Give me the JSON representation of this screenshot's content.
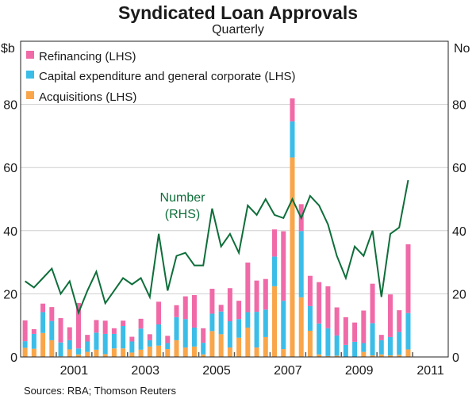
{
  "chart_data": {
    "type": "bar",
    "title": "Syndicated Loan Approvals",
    "subtitle": "Quarterly",
    "ylabel_left": "$b",
    "ylabel_right": "No",
    "ylim_left": [
      0,
      100
    ],
    "ylim_right": [
      0,
      100
    ],
    "yticks": [
      "0",
      "20",
      "40",
      "60",
      "80"
    ],
    "xlim": [
      2000,
      2012
    ],
    "xticks": [
      "2001",
      "2003",
      "2005",
      "2007",
      "2009",
      "2011"
    ],
    "grid": true,
    "legend_placement": "top-left",
    "x_start": "2000 Q1",
    "x_end": "2010 Q4",
    "series": [
      {
        "name": "Refinancing (LHS)",
        "kind": "stacked-bar",
        "color": "#f06aa8",
        "values": [
          6.6,
          1.5,
          2.7,
          4.4,
          7.7,
          4.1,
          14.4,
          2.1,
          4.0,
          4.2,
          1.8,
          1.7,
          1.5,
          3.1,
          1.9,
          7.2,
          2.3,
          3.8,
          7.2,
          10.3,
          4.6,
          7.9,
          2.1,
          10.5,
          5.8,
          15.7,
          9.9,
          9.7,
          8.6,
          22.0,
          7.3,
          8.5,
          9.6,
          13.1,
          13.3,
          8.9,
          8.8,
          6.1,
          10.3,
          12.5,
          1.7,
          13.5,
          6.9,
          21.8
        ]
      },
      {
        "name": "Capital expenditure and general corporate (LHS)",
        "kind": "stacked-bar",
        "color": "#3bbde8",
        "values": [
          2.1,
          4.7,
          6.6,
          6.1,
          4.4,
          2.9,
          1.9,
          3.3,
          5.4,
          6.4,
          4.6,
          7.1,
          3.5,
          6.7,
          2.0,
          6.7,
          1.9,
          7.3,
          9.0,
          6.0,
          3.7,
          5.5,
          7.2,
          8.3,
          5.9,
          4.9,
          11.3,
          8.7,
          9.4,
          15.3,
          11.4,
          21.0,
          7.8,
          9.8,
          8.8,
          6.4,
          3.8,
          4.8,
          2.8,
          10.2,
          4.5,
          5.8,
          7.2,
          11.5
        ]
      },
      {
        "name": "Acquisitions (LHS)",
        "kind": "stacked-bar",
        "color": "#f9a54a",
        "values": [
          2.9,
          2.6,
          7.6,
          5.3,
          0.2,
          2.4,
          0.8,
          1.6,
          2.3,
          0.9,
          2.7,
          2.7,
          1.4,
          2.3,
          3.3,
          3.6,
          2.5,
          5.3,
          3.0,
          3.3,
          0.8,
          8.2,
          7.2,
          3.0,
          6.1,
          9.3,
          3.0,
          6.3,
          22.4,
          2.5,
          63.2,
          18.9,
          8.3,
          0.8,
          0.3,
          0.4,
          0.0,
          0.0,
          1.6,
          0.5,
          0.8,
          0.5,
          0.7,
          2.4
        ]
      },
      {
        "name": "Number",
        "axis": "RHS",
        "kind": "line",
        "color": "#0e6e3a",
        "values": [
          24,
          22,
          25,
          28,
          20,
          24,
          14,
          21,
          27,
          17,
          21,
          25,
          23,
          25,
          19,
          39,
          21,
          32,
          33,
          29,
          29,
          47,
          35,
          39,
          33,
          48,
          45,
          50,
          45,
          44,
          50,
          44,
          51,
          48,
          42,
          32,
          25,
          35,
          32,
          40,
          19,
          39,
          41,
          56
        ]
      }
    ],
    "annotations": {
      "line_label_1": "Number",
      "line_label_2": "(RHS)"
    },
    "source": "Sources: RBA; Thomson Reuters"
  }
}
